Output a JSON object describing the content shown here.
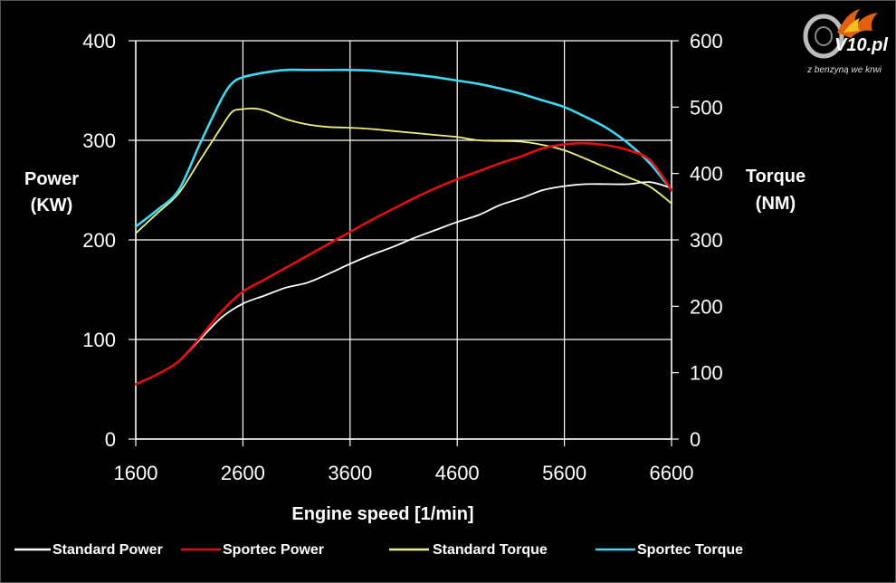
{
  "logo": {
    "brand": "V10.pl",
    "tagline": "z benzyną we krwi"
  },
  "chart_data": {
    "type": "line",
    "xlabel": "Engine speed  [1/min]",
    "ylabel_left": [
      "Power",
      "(KW)"
    ],
    "ylabel_right": [
      "Torque",
      "(NM)"
    ],
    "xlim": [
      1600,
      6600
    ],
    "ylim_left": [
      0,
      400
    ],
    "ylim_right": [
      0,
      600
    ],
    "x_ticks": [
      "1600",
      "2600",
      "3600",
      "4600",
      "5600",
      "6600"
    ],
    "y_ticks_left": [
      "0",
      "100",
      "200",
      "300",
      "400"
    ],
    "y_ticks_right": [
      "0",
      "100",
      "200",
      "300",
      "400",
      "500",
      "600"
    ],
    "grid": true,
    "legend_position": "bottom",
    "series": [
      {
        "name": "Standard Power",
        "axis": "left",
        "color": "#ffffff",
        "x": [
          1600,
          1800,
          2000,
          2200,
          2400,
          2600,
          2800,
          3000,
          3200,
          3400,
          3600,
          3800,
          4000,
          4200,
          4400,
          4600,
          4800,
          5000,
          5200,
          5400,
          5600,
          5800,
          6000,
          6200,
          6400,
          6600
        ],
        "y": [
          55,
          65,
          78,
          100,
          122,
          136,
          144,
          152,
          157,
          166,
          176,
          185,
          193,
          202,
          210,
          218,
          225,
          235,
          242,
          250,
          254,
          256,
          256,
          256,
          258,
          252
        ]
      },
      {
        "name": "Sportec Power",
        "axis": "left",
        "color": "#e01010",
        "x": [
          1600,
          1800,
          2000,
          2200,
          2400,
          2600,
          2800,
          3000,
          3200,
          3400,
          3600,
          3800,
          4000,
          4200,
          4400,
          4600,
          4800,
          5000,
          5200,
          5400,
          5600,
          5800,
          6000,
          6200,
          6400,
          6600
        ],
        "y": [
          55,
          65,
          78,
          102,
          128,
          148,
          160,
          172,
          184,
          196,
          208,
          220,
          231,
          242,
          252,
          261,
          269,
          277,
          284,
          292,
          296,
          297,
          295,
          290,
          280,
          250
        ]
      },
      {
        "name": "Standard Torque",
        "axis": "right",
        "color": "#f0f080",
        "x": [
          1600,
          1800,
          2000,
          2200,
          2400,
          2500,
          2600,
          2700,
          2800,
          3000,
          3200,
          3400,
          3600,
          3800,
          4000,
          4200,
          4400,
          4600,
          4800,
          5000,
          5200,
          5400,
          5600,
          5800,
          6000,
          6200,
          6400,
          6600
        ],
        "y": [
          310,
          340,
          370,
          420,
          470,
          493,
          497,
          498,
          495,
          482,
          474,
          470,
          469,
          467,
          464,
          461,
          458,
          455,
          450,
          449,
          448,
          443,
          435,
          422,
          408,
          394,
          380,
          355
        ]
      },
      {
        "name": "Sportec Torque",
        "axis": "right",
        "color": "#40d8f0",
        "x": [
          1600,
          1800,
          2000,
          2200,
          2400,
          2500,
          2600,
          2800,
          3000,
          3200,
          3400,
          3600,
          3800,
          4000,
          4200,
          4400,
          4600,
          4800,
          5000,
          5200,
          5400,
          5600,
          5800,
          6000,
          6200,
          6400,
          6600
        ],
        "y": [
          320,
          345,
          375,
          445,
          512,
          536,
          545,
          552,
          556,
          556,
          556,
          556,
          555,
          552,
          549,
          545,
          540,
          535,
          528,
          520,
          510,
          500,
          485,
          468,
          445,
          415,
          375
        ]
      }
    ]
  }
}
